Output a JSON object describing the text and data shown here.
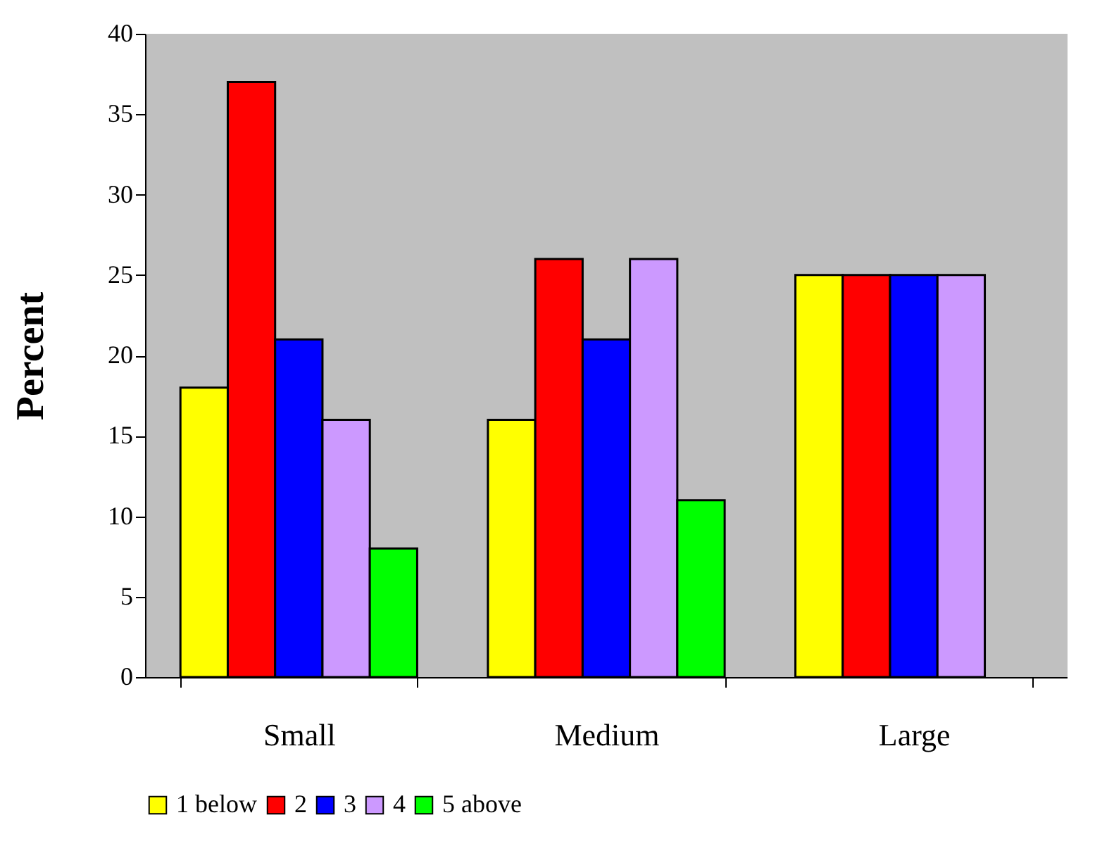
{
  "chart_data": {
    "type": "bar",
    "ylabel": "Percent",
    "categories": [
      "Small",
      "Medium",
      "Large"
    ],
    "series": [
      {
        "name": "1 below",
        "color": "#ffff00",
        "values": [
          18,
          16,
          25
        ]
      },
      {
        "name": "2",
        "color": "#ff0000",
        "values": [
          37,
          26,
          25
        ]
      },
      {
        "name": "3",
        "color": "#0000ff",
        "values": [
          21,
          21,
          25
        ]
      },
      {
        "name": "4",
        "color": "#cc99ff",
        "values": [
          16,
          26,
          25
        ]
      },
      {
        "name": "5 above",
        "color": "#00ff00",
        "values": [
          8,
          11,
          null
        ]
      }
    ],
    "ylim": [
      0,
      40
    ],
    "yticks": [
      0,
      5,
      10,
      15,
      20,
      25,
      30,
      35,
      40
    ],
    "grid": false,
    "legend": "bottom"
  }
}
